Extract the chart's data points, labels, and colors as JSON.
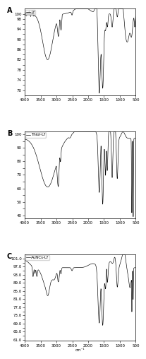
{
  "panels": [
    {
      "label": "A",
      "legend": "Lf",
      "ylim": [
        68,
        102
      ],
      "yticks": [
        70,
        72,
        74,
        76,
        78,
        80,
        82,
        84,
        86,
        88,
        90,
        92,
        94,
        96,
        98,
        100
      ],
      "ytick_labels": [
        "70",
        "",
        "74",
        "",
        "78",
        "",
        "82",
        "",
        "86",
        "",
        "90",
        "",
        "94",
        "",
        "98",
        "100"
      ]
    },
    {
      "label": "B",
      "legend": "Thiol-Lf",
      "ylim": [
        38,
        102
      ],
      "yticks": [
        40,
        45,
        50,
        55,
        60,
        65,
        70,
        75,
        80,
        85,
        90,
        95,
        100
      ],
      "ytick_labels": [
        "40",
        "",
        "50",
        "",
        "60",
        "",
        "70",
        "",
        "80",
        "",
        "90",
        "",
        "100"
      ]
    },
    {
      "label": "C",
      "legend": "AuNCs-Lf",
      "ylim": [
        60.5,
        103
      ],
      "yticks": [
        61,
        63,
        65,
        67,
        69,
        71,
        73,
        75,
        77,
        79,
        81,
        83,
        85,
        87,
        89,
        91,
        93,
        95,
        97,
        99,
        101
      ],
      "ytick_labels": [
        "61.0",
        "",
        "65.0",
        "",
        "69.0",
        "",
        "73.0",
        "",
        "77.0",
        "",
        "81.0",
        "",
        "85.0",
        "",
        "89.0",
        "",
        "93.0",
        "",
        "97.0",
        "",
        "101.0"
      ]
    }
  ],
  "xlabel": "cm⁻¹",
  "xmin": 4000,
  "xmax": 500,
  "xticks": [
    4000,
    3500,
    3000,
    2500,
    2000,
    1500,
    1000,
    500
  ],
  "line_color": "#000000",
  "background_color": "#ffffff",
  "fontsize_axis": 4,
  "fontsize_label": 7,
  "fontsize_legend": 4
}
